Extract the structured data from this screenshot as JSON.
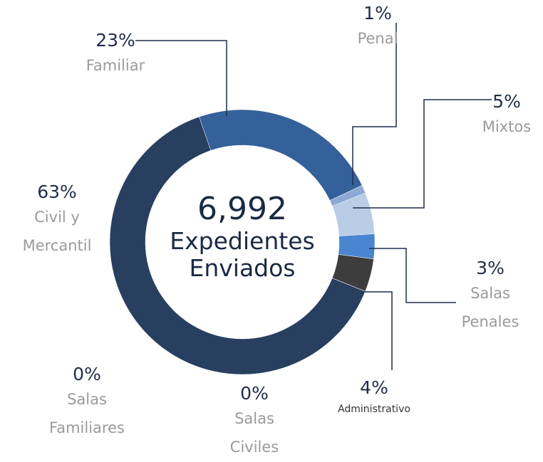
{
  "chart_data": {
    "type": "donut",
    "total": "6,992",
    "center_label": "Expedientes Enviados",
    "categories": [
      "Familiar",
      "Penal",
      "Mixtos",
      "Salas Penales",
      "Administrativo",
      "Salas Civiles",
      "Salas Familiares",
      "Civil y Mercantil"
    ],
    "values": [
      23,
      1,
      5,
      3,
      4,
      0,
      0,
      63
    ],
    "value_labels": [
      "23%",
      "1%",
      "5%",
      "3%",
      "4%",
      "0%",
      "0%",
      "63%"
    ],
    "colors": [
      "#34619a",
      "#8eaad4",
      "#b9cde6",
      "#4a86d0",
      "#3d3d3d",
      "#283f60",
      "#283f60",
      "#283f60"
    ]
  }
}
